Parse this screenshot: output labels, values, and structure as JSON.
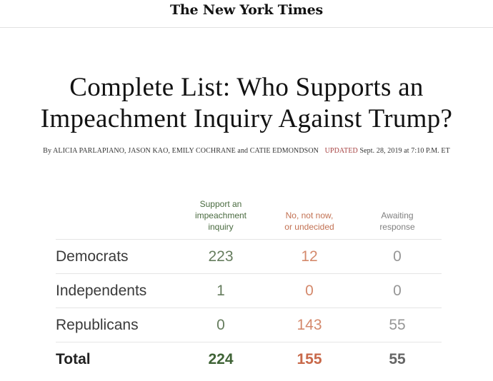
{
  "masthead": {
    "logo_text": "The New York Times"
  },
  "article": {
    "headline_line1": "Complete List: Who Supports an",
    "headline_line2": "Impeachment Inquiry Against Trump?",
    "byline_prefix": "By ALICIA PARLAPIANO, JASON KAO, EMILY COCHRANE and CATIE EDMONDSON",
    "updated_label": "UPDATED",
    "updated_time": "Sept. 28, 2019 at 7:10 P.M. ET"
  },
  "table": {
    "headers": {
      "support": [
        "Support an",
        "impeachment",
        "inquiry"
      ],
      "no": [
        "No, not now,",
        "or undecided"
      ],
      "awaiting": [
        "Awaiting",
        "response"
      ]
    },
    "rows": [
      {
        "party": "Democrats",
        "support": "223",
        "no": "12",
        "awaiting": "0"
      },
      {
        "party": "Independents",
        "support": "1",
        "no": "0",
        "awaiting": "0"
      },
      {
        "party": "Republicans",
        "support": "0",
        "no": "143",
        "awaiting": "55"
      }
    ],
    "total": {
      "label": "Total",
      "support": "224",
      "no": "155",
      "awaiting": "55"
    }
  },
  "colors": {
    "support": "#4a6b40",
    "no": "#c27152",
    "awaiting": "#808080",
    "updated": "#a54040"
  }
}
